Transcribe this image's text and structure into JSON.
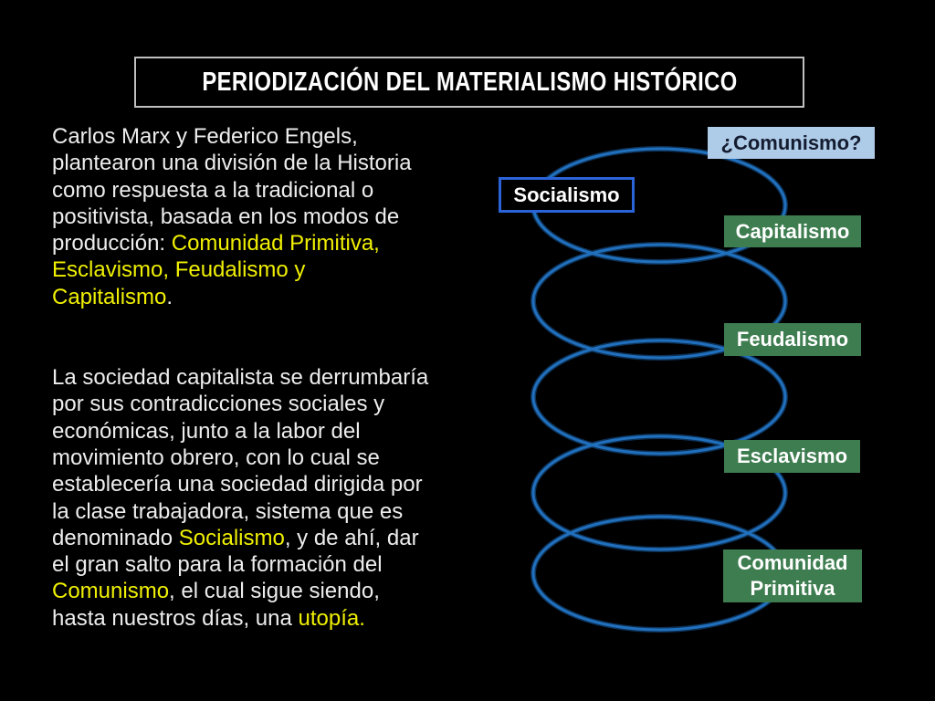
{
  "title": "PERIODIZACIÓN DEL MATERIALISMO HISTÓRICO",
  "colors": {
    "background": "#000000",
    "body_text": "#ededed",
    "highlight_yellow": "#f0f000",
    "title_text": "#ffffff",
    "title_border": "#c0c0c0",
    "spiral_blue": "#2170bd",
    "spiral_halo": "#0d3258",
    "green_box": "#3e7d50",
    "light_blue_box": "#aecbe8",
    "dark_navy_text": "#141c30",
    "socialismo_border": "#2b64d9",
    "label_text": "#ffffff"
  },
  "paragraphs": [
    {
      "lines": [
        [
          {
            "t": "Carlos Marx y Federico Engels,",
            "hl": false
          }
        ],
        [
          {
            "t": "plantearon una división de la Historia",
            "hl": false
          }
        ],
        [
          {
            "t": "como respuesta a la tradicional o",
            "hl": false
          }
        ],
        [
          {
            "t": "positivista, basada en los modos de",
            "hl": false
          }
        ],
        [
          {
            "t": "producción: ",
            "hl": false
          },
          {
            "t": "Comunidad Primitiva,",
            "hl": true
          }
        ],
        [
          {
            "t": "Esclavismo, Feudalismo y",
            "hl": true
          }
        ],
        [
          {
            "t": "Capitalismo",
            "hl": true
          },
          {
            "t": ".",
            "hl": false
          }
        ]
      ]
    },
    {
      "lines": [
        [
          {
            "t": "La sociedad capitalista se derrumbaría",
            "hl": false
          }
        ],
        [
          {
            "t": "por sus contradicciones sociales y",
            "hl": false
          }
        ],
        [
          {
            "t": "económicas, junto a la labor del",
            "hl": false
          }
        ],
        [
          {
            "t": "movimiento obrero, con lo cual se",
            "hl": false
          }
        ],
        [
          {
            "t": "establecería una sociedad dirigida por",
            "hl": false
          }
        ],
        [
          {
            "t": "la clase trabajadora, sistema que es",
            "hl": false
          }
        ],
        [
          {
            "t": "denominado ",
            "hl": false
          },
          {
            "t": "Socialismo",
            "hl": true
          },
          {
            "t": ", y de ahí, dar",
            "hl": false
          }
        ],
        [
          {
            "t": "el gran salto para la formación del",
            "hl": false
          }
        ],
        [
          {
            "t": "Comunismo",
            "hl": true
          },
          {
            "t": ", el cual sigue siendo,",
            "hl": false
          }
        ],
        [
          {
            "t": "hasta nuestros días, una ",
            "hl": false
          },
          {
            "t": "utopía.",
            "hl": true
          }
        ]
      ]
    }
  ],
  "diagram": {
    "spiral": {
      "type": "coil",
      "turns": 5,
      "color": "#2170bd"
    },
    "labels": [
      {
        "text": "¿Comunismo?",
        "style": "light-blue"
      },
      {
        "text": "Socialismo",
        "style": "black-with-blue-outline"
      },
      {
        "text": "Capitalismo",
        "style": "green"
      },
      {
        "text": "Feudalismo",
        "style": "green"
      },
      {
        "text": "Esclavismo",
        "style": "green"
      },
      {
        "text": "Comunidad Primitiva",
        "style": "green"
      }
    ]
  }
}
